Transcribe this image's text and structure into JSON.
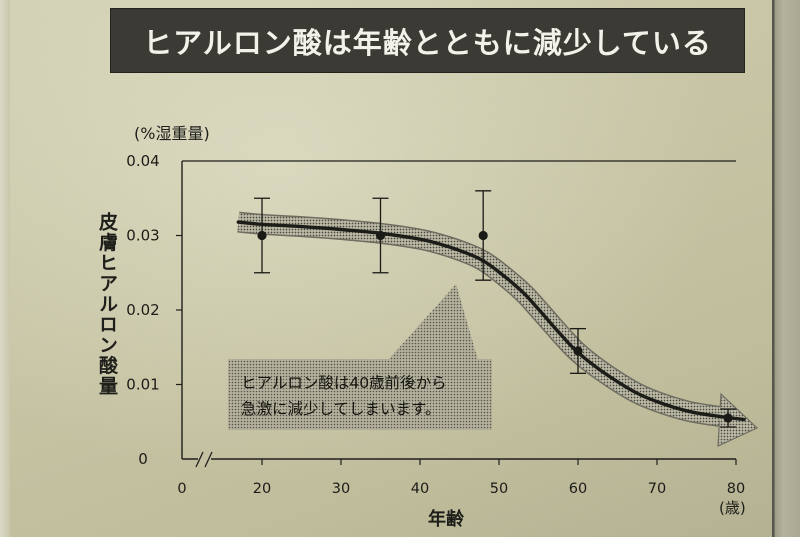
{
  "colors": {
    "banner": "#3b3a35",
    "banner_text": "#f2f1ea",
    "curve": "#1c1c18",
    "points": "#1a1a16"
  },
  "chart_data": {
    "type": "line",
    "title": "ヒアルロン酸は年齢とともに減少している",
    "xlabel": "年齢",
    "xunit": "(歳)",
    "ylabel": "皮膚ヒアルロン酸量",
    "yunit": "(%湿重量)",
    "xlim": [
      0,
      80
    ],
    "ylim": [
      0,
      0.04
    ],
    "x_axis_break": true,
    "grid": false,
    "xticks": [
      0,
      20,
      30,
      40,
      50,
      60,
      70,
      80
    ],
    "xtick_labels": [
      "0",
      "20",
      "30",
      "40",
      "50",
      "60",
      "70",
      "80"
    ],
    "yticks": [
      0.04,
      0.03,
      0.02,
      0.01,
      0
    ],
    "ytick_labels": [
      "0.04",
      "0.03",
      "0.02",
      "0.01",
      "0"
    ],
    "points": {
      "x": [
        20,
        35,
        48,
        60,
        79
      ],
      "y": [
        0.03,
        0.03,
        0.03,
        0.0145,
        0.0055
      ],
      "error": [
        0.005,
        0.005,
        0.006,
        0.003,
        0.0012
      ]
    },
    "trend": {
      "x": [
        17,
        20,
        25,
        30,
        35,
        40,
        43,
        46,
        48,
        50,
        53,
        55,
        58,
        60,
        63,
        67,
        70,
        74,
        78,
        81
      ],
      "y": [
        0.0318,
        0.0315,
        0.0312,
        0.0308,
        0.0303,
        0.0295,
        0.0287,
        0.0276,
        0.0266,
        0.0251,
        0.0224,
        0.0201,
        0.0165,
        0.0143,
        0.0118,
        0.0091,
        0.0077,
        0.0064,
        0.0057,
        0.0053
      ]
    },
    "annotation": [
      "ヒアルロン酸は40歳前後から",
      "急激に減少してしまいます。"
    ]
  }
}
